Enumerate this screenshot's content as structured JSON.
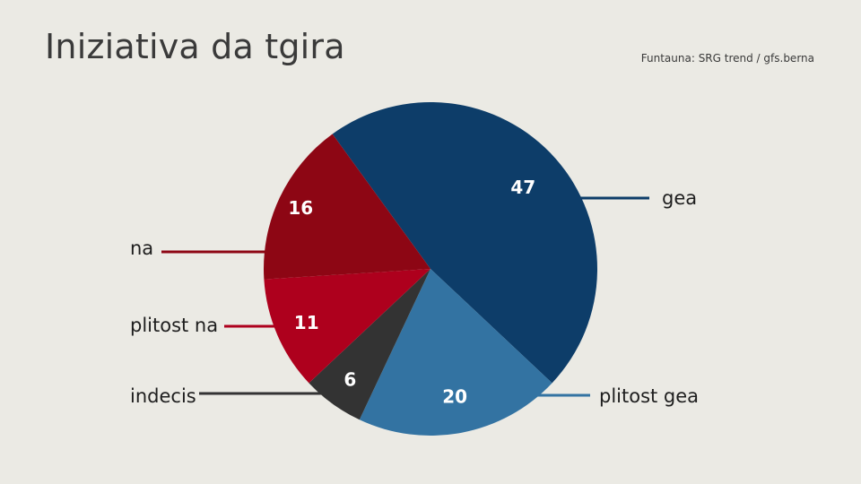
{
  "title": "Iniziativa da tgira",
  "source": "Funtauna: SRG trend / gfs.berna",
  "chart_data": {
    "type": "pie",
    "title": "Iniziativa da tgira",
    "unit": "%",
    "start_angle_deg": -36,
    "direction": "clockwise",
    "slices": [
      {
        "label": "gea",
        "value": 47,
        "color": "#0d3d69"
      },
      {
        "label": "plitost gea",
        "value": 20,
        "color": "#3373a2"
      },
      {
        "label": "indecis",
        "value": 6,
        "color": "#333333"
      },
      {
        "label": "plitost na",
        "value": 11,
        "color": "#ae001d"
      },
      {
        "label": "na",
        "value": 16,
        "color": "#8d0614"
      }
    ]
  }
}
